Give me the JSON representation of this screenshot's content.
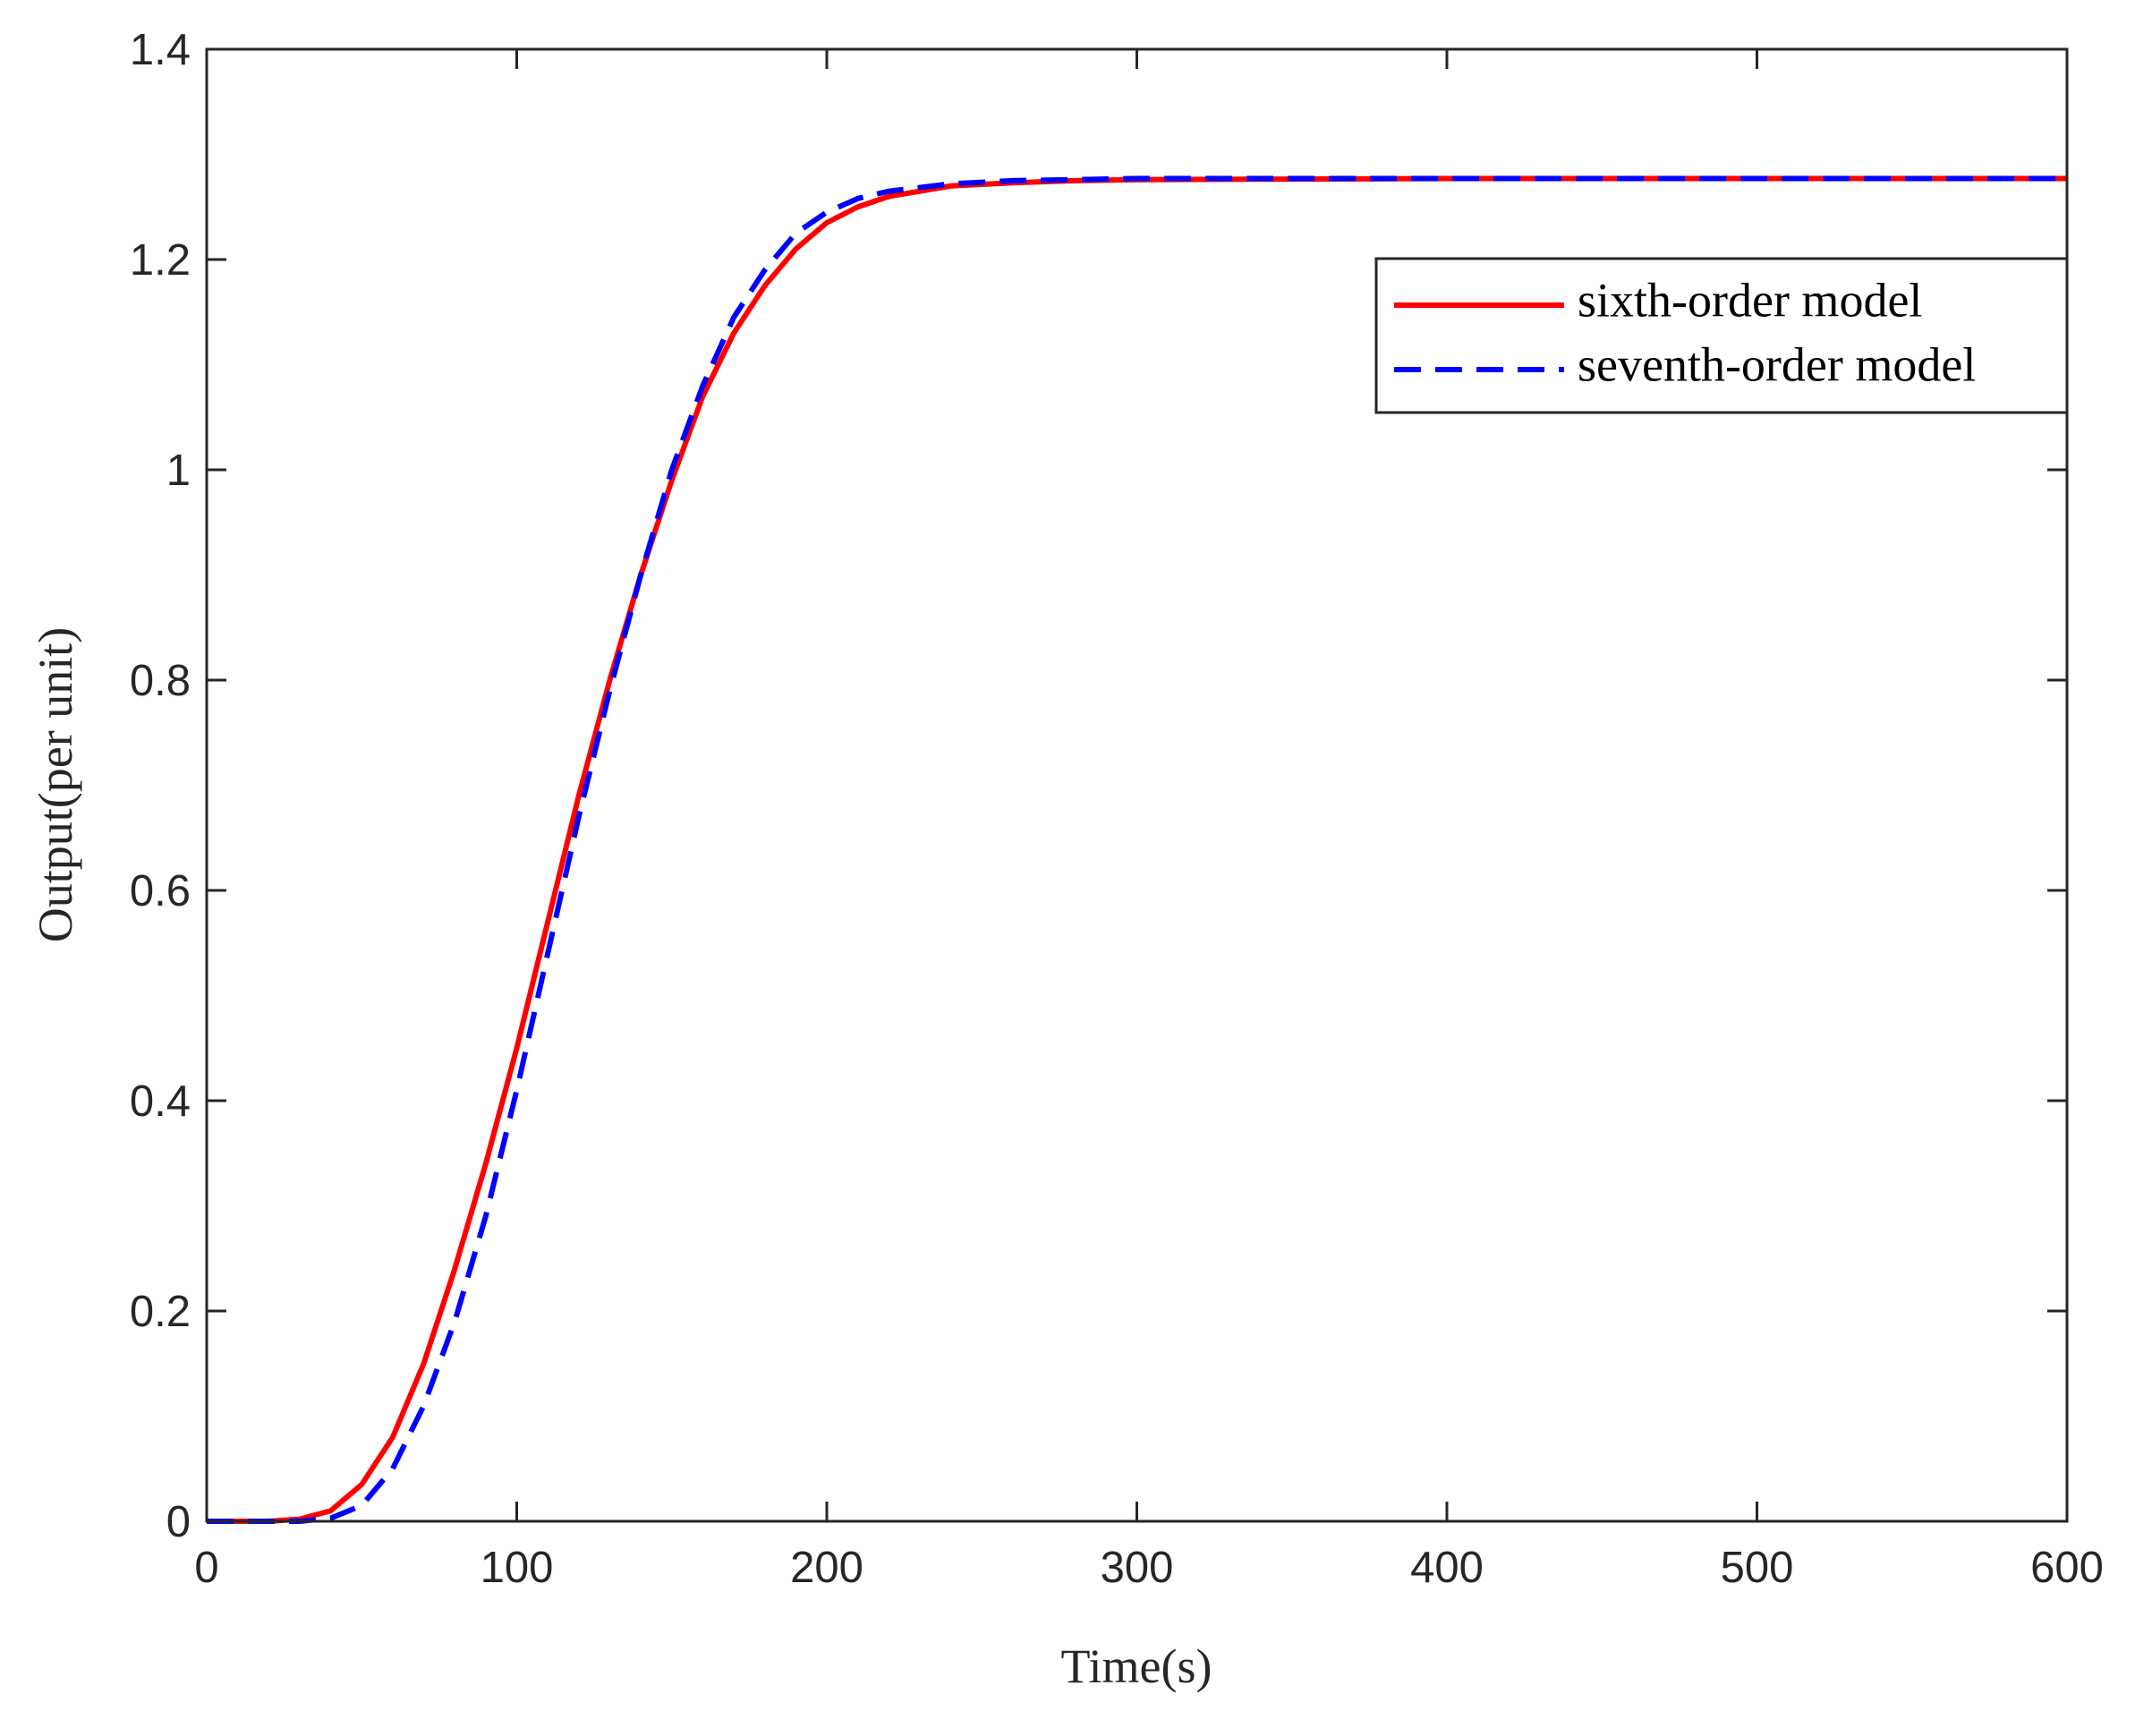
{
  "chart_data": {
    "type": "line",
    "xlabel": "Time(s)",
    "ylabel": "Output(per unit)",
    "x": [
      0,
      10,
      20,
      30,
      40,
      50,
      60,
      70,
      80,
      90,
      100,
      110,
      120,
      130,
      140,
      150,
      160,
      170,
      180,
      190,
      200,
      210,
      220,
      240,
      260,
      280,
      300,
      400,
      500,
      600
    ],
    "series": [
      {
        "name": "sixth-order model",
        "color": "#ff0000",
        "dash": "solid",
        "values": [
          0,
          0,
          0,
          0.002,
          0.01,
          0.035,
          0.08,
          0.15,
          0.24,
          0.34,
          0.45,
          0.57,
          0.69,
          0.8,
          0.9,
          0.99,
          1.07,
          1.13,
          1.175,
          1.21,
          1.235,
          1.25,
          1.26,
          1.27,
          1.273,
          1.275,
          1.276,
          1.277,
          1.277,
          1.277
        ]
      },
      {
        "name": "seventh-order model",
        "color": "#0000ff",
        "dash": "dashed",
        "values": [
          0,
          0,
          0,
          0,
          0.003,
          0.015,
          0.05,
          0.11,
          0.19,
          0.29,
          0.41,
          0.54,
          0.67,
          0.79,
          0.9,
          1.0,
          1.08,
          1.145,
          1.19,
          1.225,
          1.245,
          1.258,
          1.265,
          1.272,
          1.275,
          1.276,
          1.277,
          1.277,
          1.277,
          1.277
        ]
      }
    ],
    "xlim": [
      0,
      600
    ],
    "ylim": [
      0,
      1.4
    ],
    "xticks": [
      0,
      100,
      200,
      300,
      400,
      500,
      600
    ],
    "yticks": [
      0,
      0.2,
      0.4,
      0.6,
      0.8,
      1,
      1.2,
      1.4
    ],
    "grid": false,
    "legend": "upper right"
  }
}
